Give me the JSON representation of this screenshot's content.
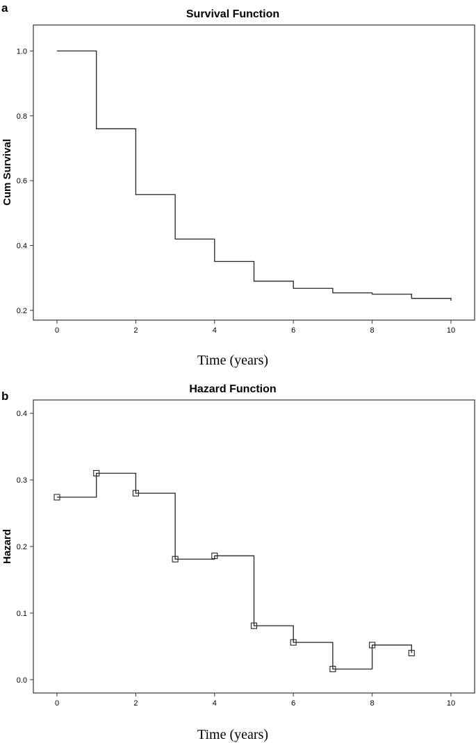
{
  "chart_data": [
    {
      "panel": "a",
      "type": "line",
      "step": true,
      "title": "Survival Function",
      "xlabel": "Time (years)",
      "ylabel": "Cum Survival",
      "xlim": [
        -0.6,
        10.6
      ],
      "ylim": [
        0.17,
        1.08
      ],
      "xticks": [
        0,
        2,
        4,
        6,
        8,
        10
      ],
      "yticks": [
        0.2,
        0.4,
        0.6,
        0.8,
        1.0
      ],
      "ytick_labels": [
        "0.2",
        "0.4",
        "0.6",
        "0.8",
        "1.0"
      ],
      "grid": false,
      "series": [
        {
          "x": [
            0,
            1,
            2,
            3,
            4,
            5,
            6,
            7,
            8,
            9,
            10
          ],
          "y": [
            1.0,
            0.76,
            0.557,
            0.42,
            0.351,
            0.29,
            0.268,
            0.254,
            0.25,
            0.237,
            0.23
          ]
        }
      ]
    },
    {
      "panel": "b",
      "type": "line",
      "step": true,
      "markers": "square",
      "title": "Hazard Function",
      "xlabel": "Time (years)",
      "ylabel": "Hazard",
      "xlim": [
        -0.6,
        10.6
      ],
      "ylim": [
        -0.02,
        0.42
      ],
      "xticks": [
        0,
        2,
        4,
        6,
        8,
        10
      ],
      "yticks": [
        0.0,
        0.1,
        0.2,
        0.3,
        0.4
      ],
      "ytick_labels": [
        "0.0",
        "0.1",
        "0.2",
        "0.3",
        "0.4"
      ],
      "grid": false,
      "series": [
        {
          "x": [
            0,
            1,
            2,
            3,
            4,
            5,
            6,
            7,
            8,
            9
          ],
          "y": [
            0.274,
            0.31,
            0.28,
            0.181,
            0.186,
            0.081,
            0.056,
            0.016,
            0.052,
            0.04
          ]
        }
      ]
    }
  ]
}
